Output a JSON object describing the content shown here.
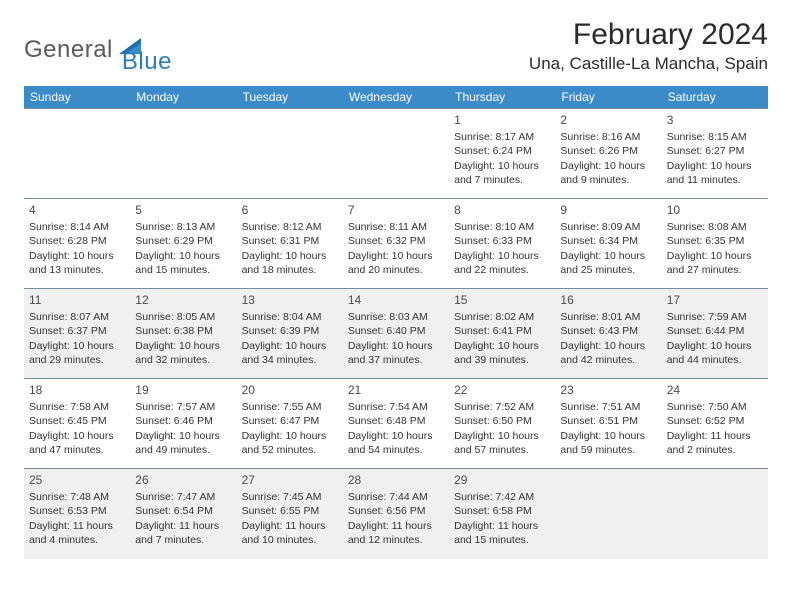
{
  "logo": {
    "general": "General",
    "blue": "Blue"
  },
  "title": "February 2024",
  "location": "Una, Castille-La Mancha, Spain",
  "colors": {
    "header_bg": "#3b8bc9",
    "header_text": "#ffffff",
    "border": "#7a8aa0",
    "shade": "#f0f0f0",
    "logo_gray": "#5a5a5a",
    "logo_blue": "#2b7bbf"
  },
  "day_headers": [
    "Sunday",
    "Monday",
    "Tuesday",
    "Wednesday",
    "Thursday",
    "Friday",
    "Saturday"
  ],
  "weeks": [
    {
      "shaded": false,
      "cells": [
        null,
        null,
        null,
        null,
        {
          "n": "1",
          "sr": "8:17 AM",
          "ss": "6:24 PM",
          "dl": "10 hours and 7 minutes."
        },
        {
          "n": "2",
          "sr": "8:16 AM",
          "ss": "6:26 PM",
          "dl": "10 hours and 9 minutes."
        },
        {
          "n": "3",
          "sr": "8:15 AM",
          "ss": "6:27 PM",
          "dl": "10 hours and 11 minutes."
        }
      ]
    },
    {
      "shaded": false,
      "cells": [
        {
          "n": "4",
          "sr": "8:14 AM",
          "ss": "6:28 PM",
          "dl": "10 hours and 13 minutes."
        },
        {
          "n": "5",
          "sr": "8:13 AM",
          "ss": "6:29 PM",
          "dl": "10 hours and 15 minutes."
        },
        {
          "n": "6",
          "sr": "8:12 AM",
          "ss": "6:31 PM",
          "dl": "10 hours and 18 minutes."
        },
        {
          "n": "7",
          "sr": "8:11 AM",
          "ss": "6:32 PM",
          "dl": "10 hours and 20 minutes."
        },
        {
          "n": "8",
          "sr": "8:10 AM",
          "ss": "6:33 PM",
          "dl": "10 hours and 22 minutes."
        },
        {
          "n": "9",
          "sr": "8:09 AM",
          "ss": "6:34 PM",
          "dl": "10 hours and 25 minutes."
        },
        {
          "n": "10",
          "sr": "8:08 AM",
          "ss": "6:35 PM",
          "dl": "10 hours and 27 minutes."
        }
      ]
    },
    {
      "shaded": true,
      "cells": [
        {
          "n": "11",
          "sr": "8:07 AM",
          "ss": "6:37 PM",
          "dl": "10 hours and 29 minutes."
        },
        {
          "n": "12",
          "sr": "8:05 AM",
          "ss": "6:38 PM",
          "dl": "10 hours and 32 minutes."
        },
        {
          "n": "13",
          "sr": "8:04 AM",
          "ss": "6:39 PM",
          "dl": "10 hours and 34 minutes."
        },
        {
          "n": "14",
          "sr": "8:03 AM",
          "ss": "6:40 PM",
          "dl": "10 hours and 37 minutes."
        },
        {
          "n": "15",
          "sr": "8:02 AM",
          "ss": "6:41 PM",
          "dl": "10 hours and 39 minutes."
        },
        {
          "n": "16",
          "sr": "8:01 AM",
          "ss": "6:43 PM",
          "dl": "10 hours and 42 minutes."
        },
        {
          "n": "17",
          "sr": "7:59 AM",
          "ss": "6:44 PM",
          "dl": "10 hours and 44 minutes."
        }
      ]
    },
    {
      "shaded": false,
      "cells": [
        {
          "n": "18",
          "sr": "7:58 AM",
          "ss": "6:45 PM",
          "dl": "10 hours and 47 minutes."
        },
        {
          "n": "19",
          "sr": "7:57 AM",
          "ss": "6:46 PM",
          "dl": "10 hours and 49 minutes."
        },
        {
          "n": "20",
          "sr": "7:55 AM",
          "ss": "6:47 PM",
          "dl": "10 hours and 52 minutes."
        },
        {
          "n": "21",
          "sr": "7:54 AM",
          "ss": "6:48 PM",
          "dl": "10 hours and 54 minutes."
        },
        {
          "n": "22",
          "sr": "7:52 AM",
          "ss": "6:50 PM",
          "dl": "10 hours and 57 minutes."
        },
        {
          "n": "23",
          "sr": "7:51 AM",
          "ss": "6:51 PM",
          "dl": "10 hours and 59 minutes."
        },
        {
          "n": "24",
          "sr": "7:50 AM",
          "ss": "6:52 PM",
          "dl": "11 hours and 2 minutes."
        }
      ]
    },
    {
      "shaded": true,
      "cells": [
        {
          "n": "25",
          "sr": "7:48 AM",
          "ss": "6:53 PM",
          "dl": "11 hours and 4 minutes."
        },
        {
          "n": "26",
          "sr": "7:47 AM",
          "ss": "6:54 PM",
          "dl": "11 hours and 7 minutes."
        },
        {
          "n": "27",
          "sr": "7:45 AM",
          "ss": "6:55 PM",
          "dl": "11 hours and 10 minutes."
        },
        {
          "n": "28",
          "sr": "7:44 AM",
          "ss": "6:56 PM",
          "dl": "11 hours and 12 minutes."
        },
        {
          "n": "29",
          "sr": "7:42 AM",
          "ss": "6:58 PM",
          "dl": "11 hours and 15 minutes."
        },
        null,
        null
      ]
    }
  ],
  "labels": {
    "sunrise": "Sunrise: ",
    "sunset": "Sunset: ",
    "daylight": "Daylight: "
  }
}
